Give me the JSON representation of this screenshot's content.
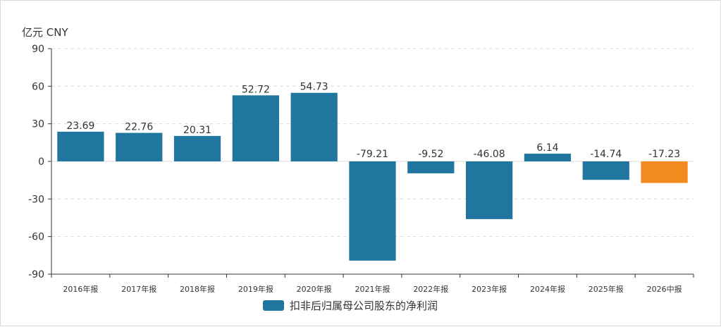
{
  "chart_data": {
    "type": "bar",
    "unit_label": "亿元  CNY",
    "categories": [
      "2016年报",
      "2017年报",
      "2018年报",
      "2019年报",
      "2020年报",
      "2021年报",
      "2022年报",
      "2023年报",
      "2024年报",
      "2025年报",
      "2026中报"
    ],
    "values": [
      23.69,
      22.76,
      20.31,
      52.72,
      54.73,
      -79.21,
      -9.52,
      -46.08,
      6.14,
      -14.74,
      -17.23
    ],
    "value_labels": [
      "23.69",
      "22.76",
      "20.31",
      "52.72",
      "54.73",
      "-79.21",
      "-9.52",
      "-46.08",
      "6.14",
      "-14.74",
      "-17.23"
    ],
    "yticks": [
      "90",
      "60",
      "30",
      "0",
      "-30",
      "-60",
      "-90"
    ],
    "ytick_values": [
      90,
      60,
      30,
      0,
      -30,
      -60,
      -90
    ],
    "ylim": [
      -90,
      90
    ],
    "grid": true,
    "series": [
      {
        "name": "扣非后归属母公司股东的净利润",
        "color": "#21769f",
        "highlight_last_color": "#f28a1d"
      }
    ],
    "legend_placement": "bottom-center"
  }
}
